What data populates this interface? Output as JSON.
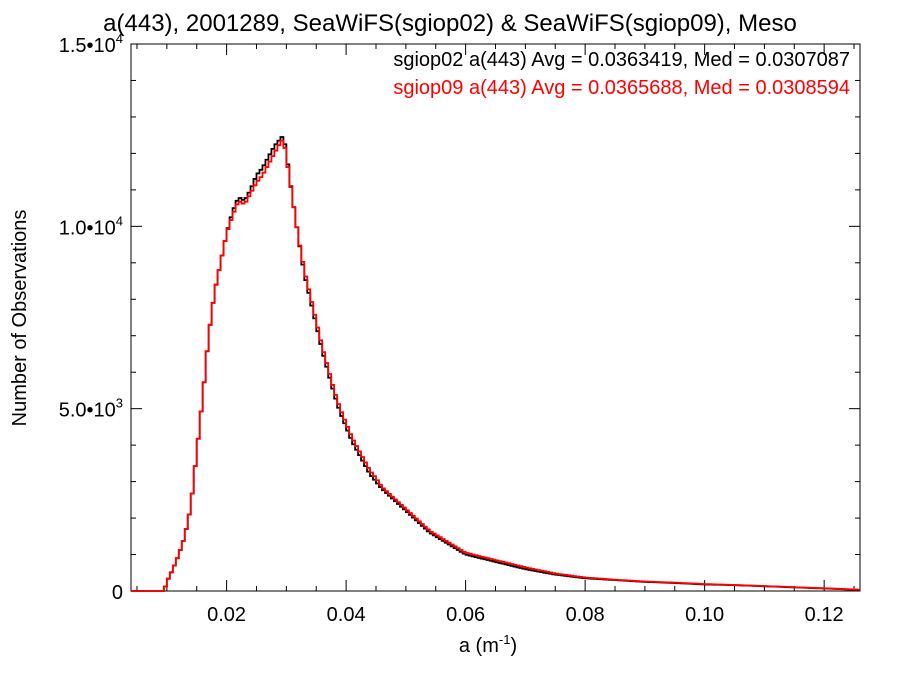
{
  "chart_data": {
    "type": "line",
    "title": "a(443), 2001289, SeaWiFS(sgiop02) & SeaWiFS(sgiop09), Meso",
    "xlabel": "a (m",
    "xlabel_sup": "-1",
    "xlabel_close": ")",
    "ylabel": "Number of Observations",
    "xlim": [
      0.004,
      0.126
    ],
    "ylim": [
      0,
      15000
    ],
    "x_ticks": [
      {
        "value": 0.02,
        "label": "0.02"
      },
      {
        "value": 0.04,
        "label": "0.04"
      },
      {
        "value": 0.06,
        "label": "0.06"
      },
      {
        "value": 0.08,
        "label": "0.08"
      },
      {
        "value": 0.1,
        "label": "0.10"
      },
      {
        "value": 0.12,
        "label": "0.12"
      }
    ],
    "y_ticks": [
      {
        "value": 0,
        "mantissa": "0",
        "exp": ""
      },
      {
        "value": 5000,
        "mantissa": "5.0•10",
        "exp": "3"
      },
      {
        "value": 10000,
        "mantissa": "1.0•10",
        "exp": "4"
      },
      {
        "value": 15000,
        "mantissa": "1.5•10",
        "exp": "4"
      }
    ],
    "legend_position": "top-right",
    "grid": false,
    "series": [
      {
        "name": "sgiop02",
        "color": "#000000",
        "annotation": "sgiop02 a(443) Avg = 0.0363419, Med = 0.0307087",
        "x": [
          0.004,
          0.0095,
          0.01,
          0.011,
          0.012,
          0.013,
          0.014,
          0.015,
          0.016,
          0.017,
          0.018,
          0.019,
          0.02,
          0.021,
          0.022,
          0.023,
          0.024,
          0.025,
          0.026,
          0.027,
          0.028,
          0.029,
          0.0295,
          0.03,
          0.031,
          0.032,
          0.033,
          0.034,
          0.035,
          0.036,
          0.037,
          0.038,
          0.039,
          0.04,
          0.041,
          0.042,
          0.043,
          0.044,
          0.045,
          0.046,
          0.048,
          0.05,
          0.052,
          0.054,
          0.056,
          0.058,
          0.06,
          0.065,
          0.07,
          0.075,
          0.08,
          0.085,
          0.09,
          0.095,
          0.1,
          0.105,
          0.11,
          0.115,
          0.12,
          0.126
        ],
        "y": [
          0,
          0,
          250,
          600,
          1000,
          1500,
          2300,
          3800,
          5300,
          7000,
          8200,
          9000,
          9800,
          10400,
          10800,
          10700,
          11000,
          11400,
          11600,
          11900,
          12200,
          12400,
          12500,
          12000,
          10800,
          9700,
          8700,
          8000,
          7300,
          6600,
          6000,
          5400,
          4900,
          4500,
          4100,
          3800,
          3500,
          3200,
          3000,
          2800,
          2500,
          2200,
          1900,
          1600,
          1400,
          1200,
          1000,
          800,
          600,
          450,
          350,
          300,
          250,
          220,
          180,
          160,
          130,
          100,
          70,
          30
        ]
      },
      {
        "name": "sgiop09",
        "color": "#ff0000",
        "annotation": "sgiop09 a(443) Avg = 0.0365688, Med = 0.0308594",
        "x": [
          0.004,
          0.0095,
          0.01,
          0.011,
          0.012,
          0.013,
          0.014,
          0.015,
          0.016,
          0.017,
          0.018,
          0.019,
          0.02,
          0.021,
          0.022,
          0.023,
          0.024,
          0.025,
          0.026,
          0.027,
          0.028,
          0.029,
          0.0295,
          0.03,
          0.031,
          0.032,
          0.033,
          0.034,
          0.035,
          0.036,
          0.037,
          0.038,
          0.039,
          0.04,
          0.041,
          0.042,
          0.043,
          0.044,
          0.045,
          0.046,
          0.048,
          0.05,
          0.052,
          0.054,
          0.056,
          0.058,
          0.06,
          0.065,
          0.07,
          0.075,
          0.08,
          0.085,
          0.09,
          0.095,
          0.1,
          0.105,
          0.11,
          0.115,
          0.12,
          0.126
        ],
        "y": [
          0,
          0,
          250,
          600,
          1000,
          1500,
          2300,
          3800,
          5300,
          7000,
          8200,
          9000,
          9800,
          10300,
          10700,
          10600,
          10900,
          11200,
          11400,
          11700,
          12000,
          12300,
          12400,
          11900,
          10800,
          9700,
          8800,
          8100,
          7400,
          6700,
          6100,
          5500,
          5000,
          4600,
          4200,
          3900,
          3600,
          3300,
          3100,
          2850,
          2550,
          2250,
          1950,
          1650,
          1450,
          1250,
          1050,
          850,
          650,
          480,
          370,
          310,
          260,
          230,
          190,
          165,
          135,
          105,
          75,
          35
        ]
      }
    ]
  }
}
